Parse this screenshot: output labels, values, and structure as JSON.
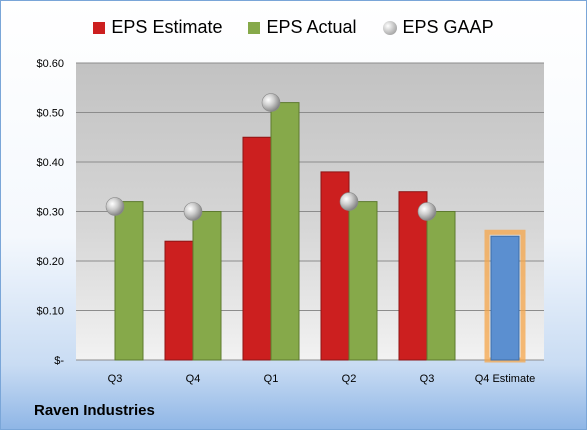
{
  "chart_data": {
    "type": "bar",
    "categories": [
      "Q3",
      "Q4",
      "Q1",
      "Q2",
      "Q3",
      "Q4 Estimate"
    ],
    "series": [
      {
        "name": "EPS Estimate",
        "color": "#cc1f1f",
        "values": [
          null,
          0.24,
          0.45,
          0.38,
          0.34,
          null
        ]
      },
      {
        "name": "EPS Actual",
        "color": "#86a94a",
        "values": [
          0.32,
          0.3,
          0.52,
          0.32,
          0.3,
          null
        ]
      },
      {
        "name": "EPS GAAP",
        "color": "#a6a6a6",
        "marker": "sphere",
        "values": [
          0.31,
          0.3,
          0.52,
          0.32,
          0.3,
          null
        ]
      },
      {
        "name": "",
        "color": "#5b8fd0",
        "highlight": "#f5a64a",
        "values": [
          null,
          null,
          null,
          null,
          null,
          0.25
        ]
      }
    ],
    "ylim": [
      0,
      0.6
    ],
    "yticks": [
      "$-",
      "$0.10",
      "$0.20",
      "$0.30",
      "$0.40",
      "$0.50",
      "$0.60"
    ],
    "grid": true,
    "legend_position": "top-center"
  },
  "company": "Raven Industries"
}
